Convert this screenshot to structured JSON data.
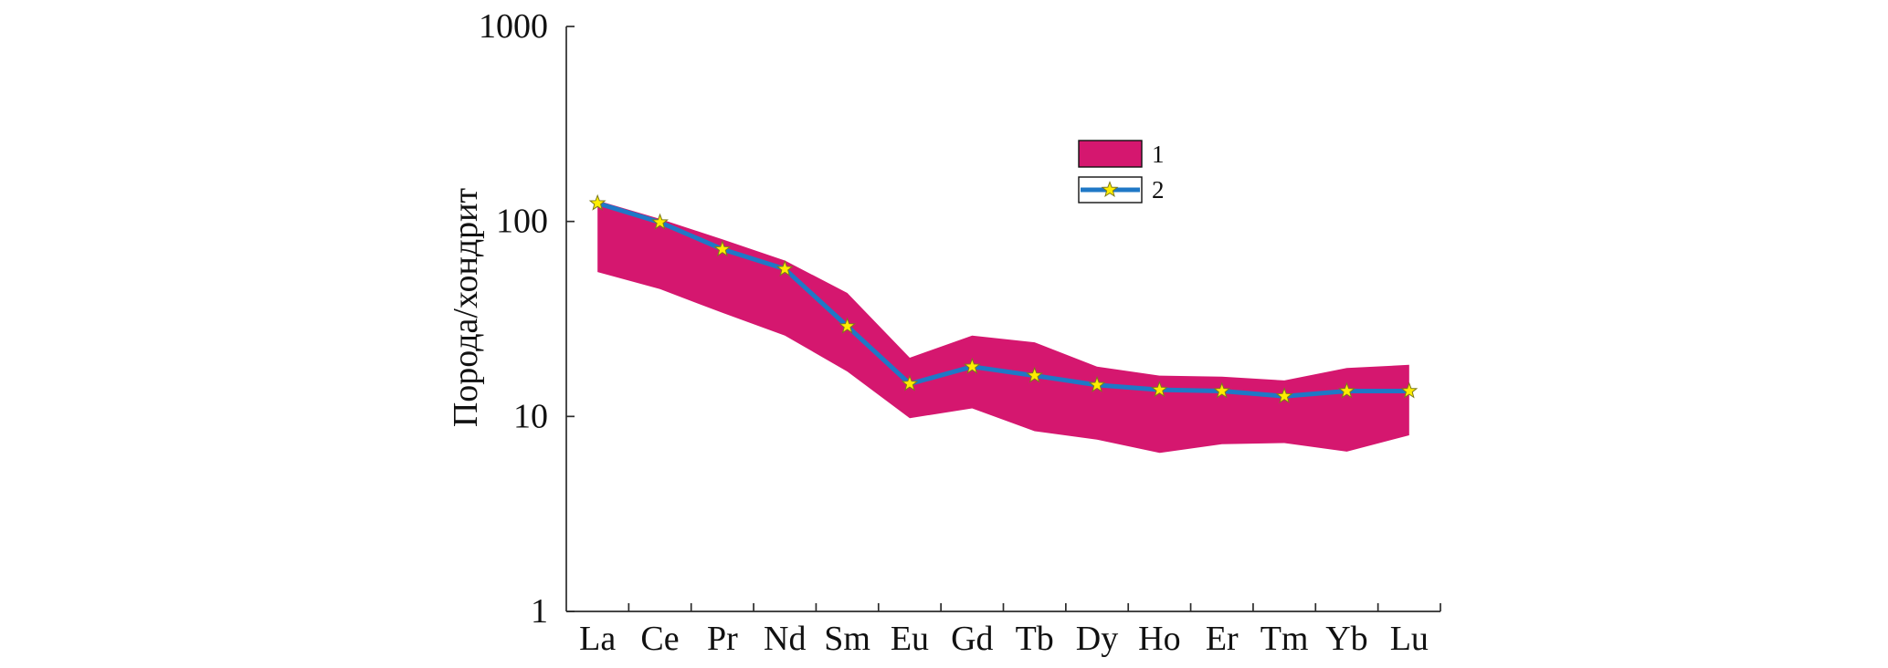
{
  "chart_data": {
    "type": "line",
    "categories": [
      "La",
      "Ce",
      "Pr",
      "Nd",
      "Sm",
      "Eu",
      "Gd",
      "Tb",
      "Dy",
      "Ho",
      "Er",
      "Tm",
      "Yb",
      "Lu"
    ],
    "ylabel": "Порода/хондрит",
    "yscale": "log",
    "ylim": [
      1,
      1000
    ],
    "yticks": [
      1,
      10,
      100,
      1000
    ],
    "grid": false,
    "legend_position": "top-right",
    "series": [
      {
        "name": "1",
        "kind": "range-band",
        "color": "#D5176F",
        "upper": [
          128,
          103,
          81,
          63,
          43,
          20,
          26,
          24,
          18,
          16.2,
          16,
          15.3,
          17.7,
          18.4
        ],
        "lower": [
          55,
          45,
          34,
          26,
          17,
          9.8,
          11,
          8.4,
          7.6,
          6.5,
          7.2,
          7.3,
          6.6,
          8
        ]
      },
      {
        "name": "2",
        "kind": "line",
        "color": "#1F78C6",
        "marker": "star",
        "marker_color": "#FFEE00",
        "marker_edge_color": "#7D7A1C",
        "values": [
          124,
          99,
          72,
          57,
          29,
          14.7,
          18,
          16.2,
          14.5,
          13.7,
          13.5,
          12.7,
          13.5,
          13.5
        ]
      }
    ]
  }
}
